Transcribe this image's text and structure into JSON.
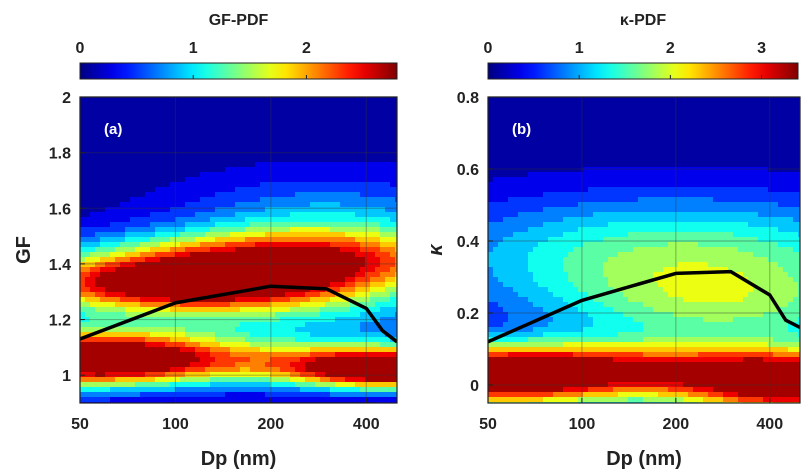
{
  "chart_data": [
    {
      "type": "heatmap",
      "panel_label": "(a)",
      "colorbar": {
        "title": "GF-PDF",
        "ticks": [
          "0",
          "1",
          "2"
        ],
        "tick_values": [
          0,
          1,
          2
        ],
        "range": [
          0,
          2.8
        ]
      },
      "xlabel": "Dp (nm)",
      "ylabel": "GF",
      "x_scale": "log",
      "xlim": [
        50,
        500
      ],
      "x_ticks": [
        50,
        100,
        200,
        400
      ],
      "ylim": [
        0.9,
        2.0
      ],
      "y_ticks": [
        "1",
        "1.2",
        "1.4",
        "1.6",
        "1.8",
        "2"
      ],
      "y_tick_values": [
        1.0,
        1.2,
        1.4,
        1.6,
        1.8,
        2.0
      ],
      "grid": true,
      "mean_line": {
        "x": [
          50,
          100,
          200,
          300,
          400,
          450,
          500
        ],
        "y": [
          1.13,
          1.26,
          1.32,
          1.31,
          1.24,
          1.16,
          1.12
        ]
      },
      "density_modes": [
        {
          "x": 100,
          "y": 1.33,
          "peak": 2.2,
          "sx": 0.35,
          "sy": 0.06
        },
        {
          "x": 200,
          "y": 1.42,
          "peak": 1.8,
          "sx": 0.45,
          "sy": 0.07
        },
        {
          "x": 52,
          "y": 1.06,
          "peak": 2.7,
          "sx": 0.28,
          "sy": 0.07
        },
        {
          "x": 480,
          "y": 1.02,
          "peak": 2.7,
          "sx": 0.22,
          "sy": 0.05
        },
        {
          "x": 180,
          "y": 1.05,
          "peak": 1.3,
          "sx": 0.55,
          "sy": 0.06
        },
        {
          "x": 300,
          "y": 1.5,
          "peak": 1.0,
          "sx": 0.35,
          "sy": 0.14
        },
        {
          "x": 150,
          "y": 1.25,
          "peak": 1.0,
          "sx": 0.5,
          "sy": 0.09
        }
      ]
    },
    {
      "type": "heatmap",
      "panel_label": "(b)",
      "colorbar": {
        "title": "κ-PDF",
        "ticks": [
          "0",
          "1",
          "2",
          "3"
        ],
        "tick_values": [
          0,
          1,
          2,
          3
        ],
        "range": [
          0,
          3.4
        ]
      },
      "xlabel": "Dp (nm)",
      "ylabel": "κ",
      "x_scale": "log",
      "xlim": [
        50,
        500
      ],
      "x_ticks": [
        50,
        100,
        200,
        400
      ],
      "ylim": [
        -0.05,
        0.8
      ],
      "y_ticks": [
        "0",
        "0.2",
        "0.4",
        "0.6",
        "0.8"
      ],
      "y_tick_values": [
        0,
        0.2,
        0.4,
        0.6,
        0.8
      ],
      "grid": true,
      "mean_line": {
        "x": [
          50,
          100,
          200,
          300,
          400,
          450,
          500
        ],
        "y": [
          0.12,
          0.235,
          0.31,
          0.315,
          0.25,
          0.18,
          0.16
        ]
      },
      "density_modes": [
        {
          "x": 55,
          "y": 0.02,
          "peak": 3.3,
          "sx": 0.32,
          "sy": 0.06
        },
        {
          "x": 480,
          "y": 0.0,
          "peak": 3.4,
          "sx": 0.28,
          "sy": 0.06
        },
        {
          "x": 200,
          "y": 0.36,
          "peak": 1.6,
          "sx": 0.55,
          "sy": 0.12
        },
        {
          "x": 150,
          "y": 0.05,
          "peak": 1.5,
          "sx": 0.5,
          "sy": 0.05
        },
        {
          "x": 300,
          "y": 0.2,
          "peak": 1.1,
          "sx": 0.4,
          "sy": 0.09
        }
      ]
    }
  ]
}
